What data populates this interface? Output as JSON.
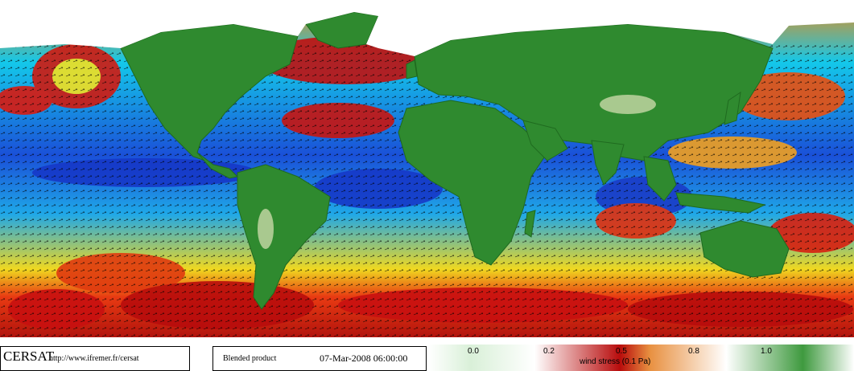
{
  "map": {
    "title": "wind stress (0.1 Pa)",
    "product": "Blended product",
    "datetime": "07-Mar-2008 06:00:00",
    "organization": "CERSAT",
    "url": "http://www.ifremer.fr/cersat",
    "colors": {
      "low": "#1030c8",
      "mid_low": "#12c8f0",
      "mid": "#f5e820",
      "mid_high": "#f07010",
      "high": "#c01010",
      "land": "#2f8a2f",
      "ice": "#ffffff"
    }
  },
  "legend": {
    "title": "wind stress (0.1 Pa)",
    "ticks": [
      "0.0",
      "0.2",
      "0.5",
      "0.8",
      "1.0"
    ],
    "range": [
      0.0,
      1.0
    ]
  }
}
